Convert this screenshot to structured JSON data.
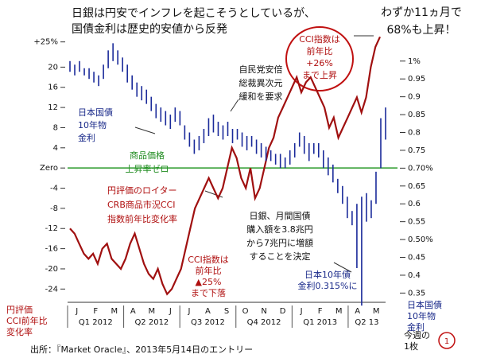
{
  "chart_data": {
    "type": "line",
    "title": [
      "日銀は円安でインフレを起こそうとしているが、",
      "国債金利は歴史的安値から反発"
    ],
    "headline": [
      "わずか11ヵ月で",
      "68%も上昇！"
    ],
    "ylabel": [
      "円評価",
      "CCI前年比",
      "変化率"
    ],
    "y2label": [
      "日本国債",
      "10年物",
      "金利"
    ],
    "months": [
      "J",
      "F",
      "M",
      "A",
      "M",
      "J",
      "J",
      "A",
      "S",
      "O",
      "N",
      "D",
      "J",
      "F",
      "M",
      "A",
      "M"
    ],
    "quarters": [
      "Q1 2012",
      "Q2 2012",
      "Q3 2012",
      "Q4 2012",
      "Q1 2013",
      "Q2 13"
    ],
    "ylim": [
      -26,
      27
    ],
    "yticks": [
      {
        "value": 25,
        "label": "+25%"
      },
      20,
      16,
      12,
      8,
      4,
      {
        "value": 0,
        "label": "Zero"
      },
      -4,
      -8,
      -12,
      -16,
      -20,
      -24
    ],
    "y2lim": [
      0.333,
      1.082
    ],
    "y2ticks": [
      {
        "value": 1,
        "label": "1%"
      },
      0.95,
      0.9,
      0.85,
      0.8,
      0.75,
      {
        "value": 0.7,
        "label": "0.70%"
      },
      0.65,
      0.6,
      0.55,
      {
        "value": 0.5,
        "label": "0.50%"
      },
      0.45,
      0.4,
      0.35
    ],
    "series": [
      {
        "color": "#a01010",
        "values": [
          -12,
          -13,
          -15,
          -17,
          -18,
          -17,
          -19,
          -16,
          -15,
          -18,
          -19,
          -20,
          -18,
          -15,
          -13,
          -16,
          -19,
          -21,
          -22,
          -20,
          -23,
          -25,
          -24,
          -22,
          -20,
          -16,
          -12,
          -8,
          -6,
          -4,
          -2,
          -4,
          -6,
          -4,
          0,
          4,
          2,
          -2,
          -4,
          0,
          -6,
          -4,
          0,
          4,
          6,
          10,
          12,
          14,
          16,
          18,
          15,
          17,
          18,
          16,
          14,
          12,
          8,
          10,
          6,
          8,
          10,
          12,
          14,
          11,
          14,
          20,
          24,
          26
        ]
      },
      {
        "color": "#1a2a9a",
        "axis": "y2",
        "high": [
          1.0,
          0.99,
          1.0,
          0.98,
          0.98,
          0.97,
          0.96,
          0.99,
          1.03,
          1.05,
          1.03,
          1.01,
          0.99,
          0.96,
          0.94,
          0.93,
          0.92,
          0.9,
          0.88,
          0.87,
          0.86,
          0.85,
          0.87,
          0.86,
          0.82,
          0.8,
          0.78,
          0.79,
          0.81,
          0.84,
          0.85,
          0.83,
          0.82,
          0.83,
          0.81,
          0.81,
          0.8,
          0.79,
          0.79,
          0.78,
          0.77,
          0.76,
          0.75,
          0.74,
          0.74,
          0.73,
          0.75,
          0.77,
          0.8,
          0.79,
          0.77,
          0.77,
          0.77,
          0.75,
          0.73,
          0.71,
          0.67,
          0.65,
          0.62,
          0.58,
          0.6,
          0.62,
          0.63,
          0.61,
          0.69,
          0.84,
          0.87
        ],
        "low": [
          0.97,
          0.96,
          0.97,
          0.96,
          0.95,
          0.94,
          0.93,
          0.95,
          0.98,
          1.0,
          0.99,
          0.97,
          0.94,
          0.92,
          0.9,
          0.89,
          0.88,
          0.86,
          0.84,
          0.83,
          0.82,
          0.81,
          0.83,
          0.82,
          0.78,
          0.76,
          0.74,
          0.75,
          0.77,
          0.79,
          0.8,
          0.79,
          0.78,
          0.79,
          0.77,
          0.78,
          0.76,
          0.75,
          0.76,
          0.74,
          0.73,
          0.72,
          0.72,
          0.71,
          0.7,
          0.7,
          0.71,
          0.73,
          0.76,
          0.74,
          0.72,
          0.74,
          0.73,
          0.7,
          0.68,
          0.66,
          0.63,
          0.6,
          0.56,
          0.54,
          0.42,
          0.315,
          0.55,
          0.56,
          0.6,
          0.7,
          0.78
        ]
      }
    ],
    "zero_line_color": "#2a9a2a",
    "annotations": [
      [
        "CCI指数は",
        "前年比",
        "+26%",
        "まで上昇"
      ],
      [
        "自民党安倍",
        "総裁異次元",
        "緩和を要求"
      ],
      [
        "日本国債",
        "10年物",
        "金利"
      ],
      [
        "商品価格",
        "上昇率ゼロ"
      ],
      [
        "円評価のロイター",
        "CRB商品市況CCI",
        "指数前年比変化率"
      ],
      [
        "日銀、月間国債",
        "購入額を3.8兆円",
        "から7兆円に増額",
        "することを決定"
      ],
      [
        "CCI指数は",
        "前年比",
        "▲25%",
        "まで下落"
      ],
      [
        "日本10年債",
        "金利0.315%に"
      ],
      [
        "今週の",
        "1枚"
      ]
    ],
    "page_number": "1",
    "source": "出所：『Market Oracle』、2013年5月14日のエントリー"
  }
}
